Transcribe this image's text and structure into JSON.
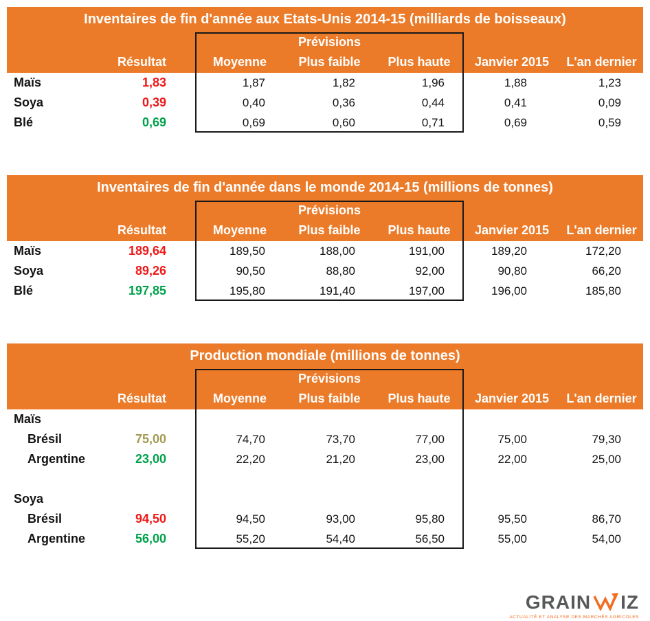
{
  "colors": {
    "header_bg": "#EC7B29",
    "header_text": "#FFFFFF",
    "negative": "#F01818",
    "positive": "#00A14B",
    "neutral": "#A39A52",
    "box_border": "#181818",
    "logo_gray": "#58595B",
    "logo_orange": "#F26C21"
  },
  "tables": [
    {
      "id": "us-inventories",
      "title": "Inventaires de fin d'année aux Etats-Unis 2014-15 (milliards de boisseaux)",
      "group_header": "Prévisions",
      "columns": [
        "Résultat",
        "Moyenne",
        "Plus faible",
        "Plus haute",
        "Janvier 2015",
        "L'an dernier"
      ],
      "rows": [
        {
          "type": "data",
          "label": "Maïs",
          "indent": false,
          "resultat": "1,83",
          "trend": "negative",
          "values": [
            "1,87",
            "1,82",
            "1,96",
            "1,88",
            "1,23"
          ]
        },
        {
          "type": "data",
          "label": "Soya",
          "indent": false,
          "resultat": "0,39",
          "trend": "negative",
          "values": [
            "0,40",
            "0,36",
            "0,44",
            "0,41",
            "0,09"
          ]
        },
        {
          "type": "data",
          "label": "Blé",
          "indent": false,
          "resultat": "0,69",
          "trend": "positive",
          "values": [
            "0,69",
            "0,60",
            "0,71",
            "0,69",
            "0,59"
          ]
        }
      ]
    },
    {
      "id": "world-inventories",
      "title": "Inventaires de fin d'année dans le monde 2014-15 (millions de tonnes)",
      "group_header": "Prévisions",
      "columns": [
        "Résultat",
        "Moyenne",
        "Plus faible",
        "Plus haute",
        "Janvier 2015",
        "L'an dernier"
      ],
      "rows": [
        {
          "type": "data",
          "label": "Maïs",
          "indent": false,
          "resultat": "189,64",
          "trend": "negative",
          "values": [
            "189,50",
            "188,00",
            "191,00",
            "189,20",
            "172,20"
          ]
        },
        {
          "type": "data",
          "label": "Soya",
          "indent": false,
          "resultat": "89,26",
          "trend": "negative",
          "values": [
            "90,50",
            "88,80",
            "92,00",
            "90,80",
            "66,20"
          ]
        },
        {
          "type": "data",
          "label": "Blé",
          "indent": false,
          "resultat": "197,85",
          "trend": "positive",
          "values": [
            "195,80",
            "191,40",
            "197,00",
            "196,00",
            "185,80"
          ]
        }
      ]
    },
    {
      "id": "world-production",
      "title": "Production mondiale (millions de tonnes)",
      "group_header": "Prévisions",
      "columns": [
        "Résultat",
        "Moyenne",
        "Plus faible",
        "Plus haute",
        "Janvier 2015",
        "L'an dernier"
      ],
      "rows": [
        {
          "type": "section",
          "label": "Maïs"
        },
        {
          "type": "data",
          "label": "Brésil",
          "indent": true,
          "resultat": "75,00",
          "trend": "neutral",
          "values": [
            "74,70",
            "73,70",
            "77,00",
            "75,00",
            "79,30"
          ]
        },
        {
          "type": "data",
          "label": "Argentine",
          "indent": true,
          "resultat": "23,00",
          "trend": "positive",
          "values": [
            "22,20",
            "21,20",
            "23,00",
            "22,00",
            "25,00"
          ]
        },
        {
          "type": "spacer",
          "label": ""
        },
        {
          "type": "section",
          "label": "Soya"
        },
        {
          "type": "data",
          "label": "Brésil",
          "indent": true,
          "resultat": "94,50",
          "trend": "negative",
          "values": [
            "94,50",
            "93,00",
            "95,80",
            "95,50",
            "86,70"
          ]
        },
        {
          "type": "data",
          "label": "Argentine",
          "indent": true,
          "resultat": "56,00",
          "trend": "positive",
          "values": [
            "55,20",
            "54,40",
            "56,50",
            "55,00",
            "54,00"
          ]
        }
      ]
    }
  ],
  "logo": {
    "part1": "GRAIN",
    "part2": "IZ",
    "tagline": "Actualité et analyse des marchés agricoles"
  }
}
